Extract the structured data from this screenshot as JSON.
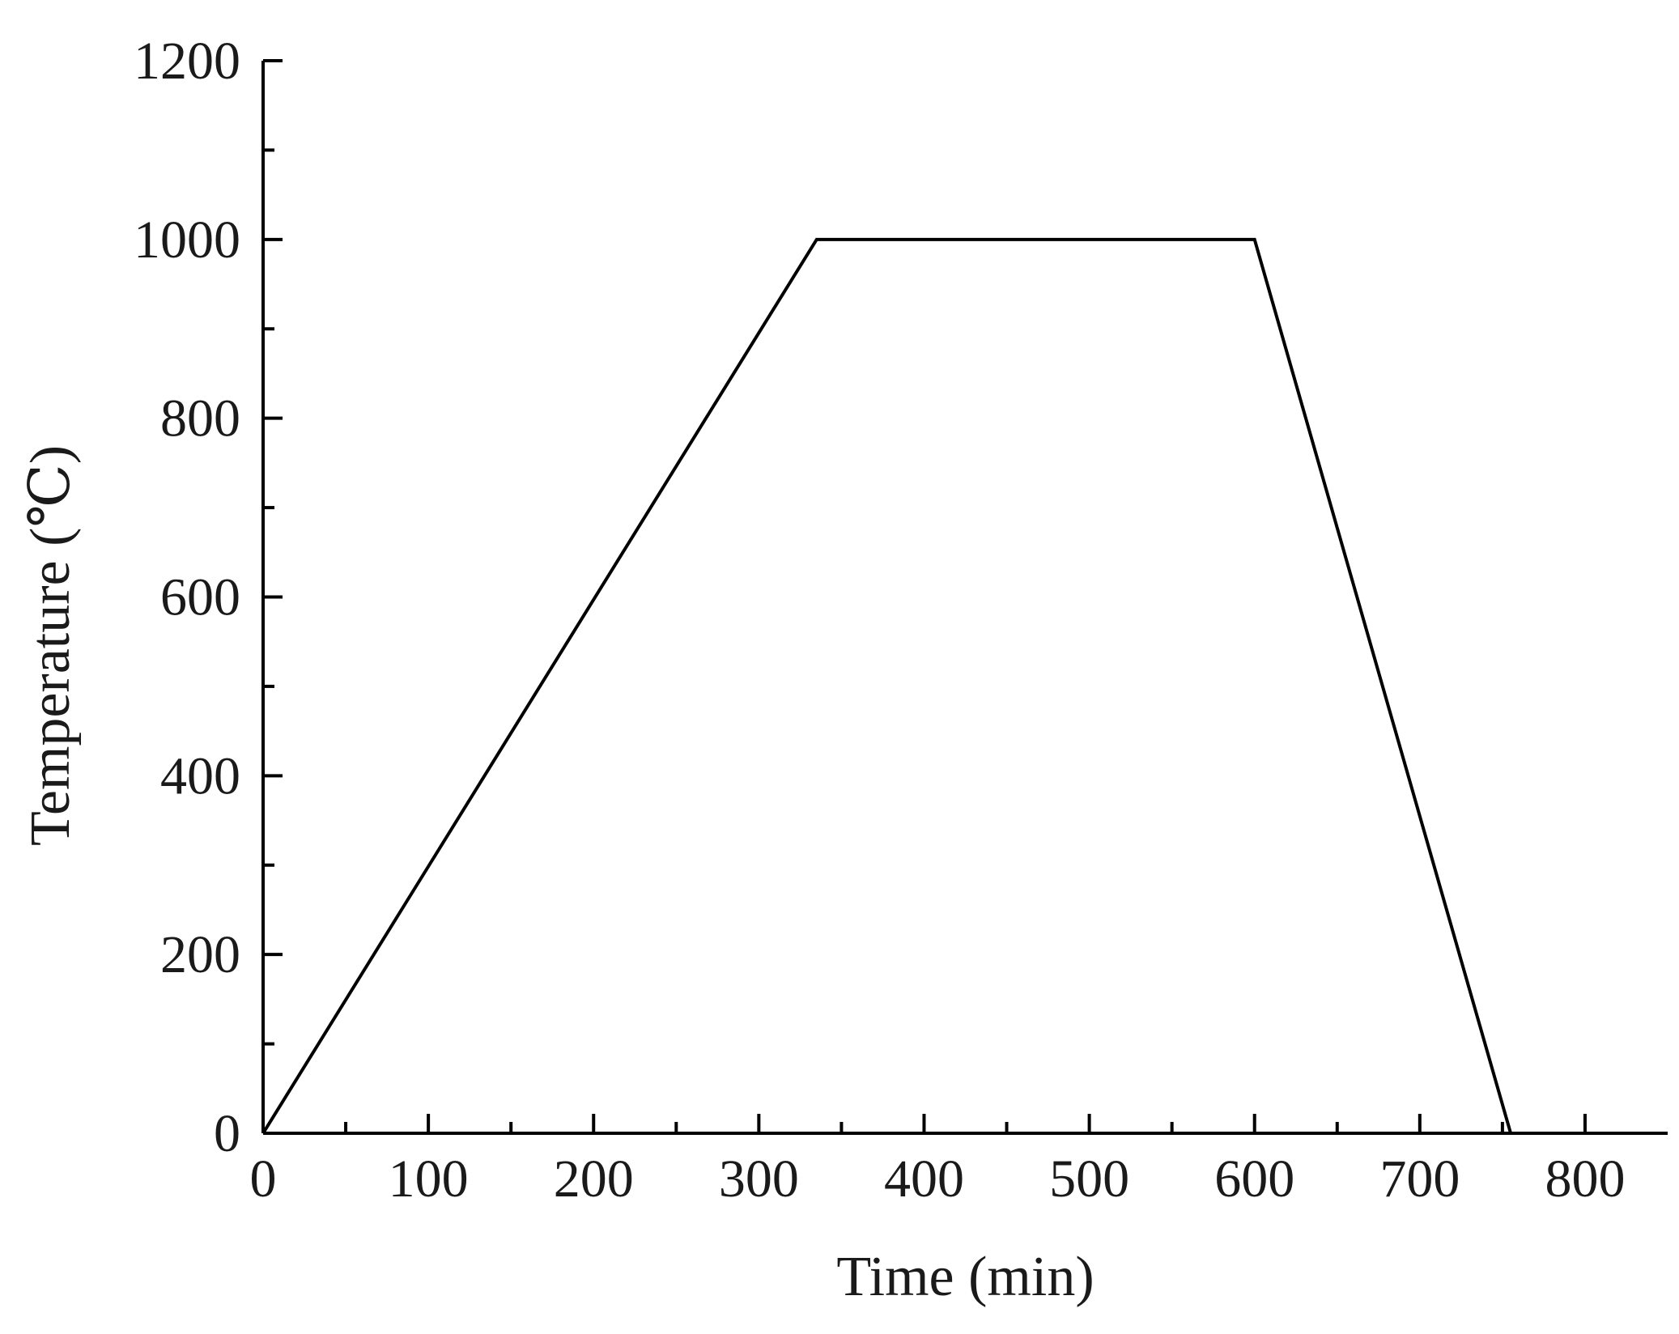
{
  "chart_data": {
    "type": "line",
    "title": "",
    "xlabel": "Time (min)",
    "ylabel": "Temperature (℃)",
    "xlim": [
      0,
      850
    ],
    "ylim": [
      0,
      1200
    ],
    "xticks": [
      0,
      100,
      200,
      300,
      400,
      500,
      600,
      700,
      800
    ],
    "yticks": [
      0,
      200,
      400,
      600,
      800,
      1000,
      1200
    ],
    "xticks_minor": [
      50,
      150,
      250,
      350,
      450,
      550,
      650,
      750
    ],
    "yticks_minor": [
      100,
      300,
      500,
      700,
      900,
      1100
    ],
    "grid": false,
    "legend": "none",
    "series": [
      {
        "color": "#000000",
        "x": [
          0,
          335,
          600,
          755
        ],
        "y": [
          0,
          1000,
          1000,
          0
        ]
      }
    ]
  }
}
